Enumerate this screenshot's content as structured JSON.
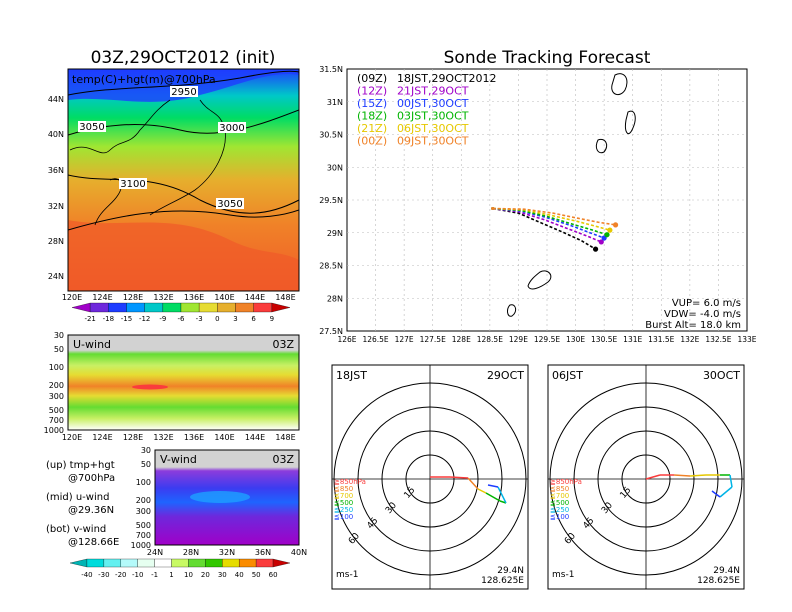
{
  "left": {
    "main_title": "03Z,29OCT2012 (init)",
    "map_label": "temp(C)+hgt(m)@700hPa",
    "contours": [
      "2950",
      "3050",
      "3000",
      "3100",
      "3050"
    ],
    "lat_ticks": [
      "44N",
      "40N",
      "36N",
      "32N",
      "28N",
      "24N"
    ],
    "lon_ticks": [
      "120E",
      "124E",
      "128E",
      "132E",
      "136E",
      "140E",
      "144E",
      "148E"
    ],
    "temp_levels": [
      "-21",
      "-18",
      "-15",
      "-12",
      "-9",
      "-6",
      "-3",
      "0",
      "3",
      "6",
      "9"
    ],
    "temp_colors": [
      "#a000c8",
      "#6e28dc",
      "#1e3cff",
      "#0096ff",
      "#00c8c8",
      "#00dc64",
      "#a0e632",
      "#e6dc32",
      "#e6af2d",
      "#f08228",
      "#fa3c3c",
      "#c80000"
    ],
    "u_panel": {
      "label": "U-wind",
      "time": "03Z",
      "p_ticks": [
        "30",
        "50",
        "100",
        "200",
        "300",
        "500",
        "700",
        "1000"
      ],
      "lon_ticks": [
        "120E",
        "124E",
        "128E",
        "132E",
        "136E",
        "140E",
        "144E",
        "148E"
      ]
    },
    "v_panel": {
      "label": "V-wind",
      "time": "03Z",
      "p_ticks": [
        "30",
        "50",
        "100",
        "200",
        "300",
        "500",
        "700",
        "1000"
      ],
      "lat_ticks": [
        "24N",
        "28N",
        "32N",
        "36N",
        "40N"
      ]
    },
    "notes": [
      {
        "a": "(up) tmp+hgt",
        "b": "@700hPa"
      },
      {
        "a": "(mid) u-wind",
        "b": "@29.36N"
      },
      {
        "a": "(bot) v-wind",
        "b": "@128.66E"
      }
    ],
    "wind_levels": [
      "-40",
      "-30",
      "-20",
      "-10",
      "-1",
      "1",
      "10",
      "20",
      "30",
      "40",
      "50",
      "60"
    ],
    "wind_colors": [
      "#00b4b4",
      "#00dcdc",
      "#64f0f0",
      "#b4fafa",
      "#e6fff0",
      "#ffffff",
      "#c8fa64",
      "#64dc32",
      "#32c800",
      "#e6dc00",
      "#fa8c00",
      "#fa3c3c",
      "#c80000"
    ]
  },
  "right": {
    "title": "Sonde Tracking Forecast",
    "legend": [
      {
        "code": "(09Z)",
        "text": "18JST,29OCT2012",
        "color": "#000000"
      },
      {
        "code": "(12Z)",
        "text": "21JST,29OCT",
        "color": "#a000c8"
      },
      {
        "code": "(15Z)",
        "text": "00JST,30OCT",
        "color": "#1e3cff"
      },
      {
        "code": "(18Z)",
        "text": "03JST,30OCT",
        "color": "#00b400"
      },
      {
        "code": "(21Z)",
        "text": "06JST,30OCT",
        "color": "#e6c800"
      },
      {
        "code": "(00Z)",
        "text": "09JST,30OCT",
        "color": "#f08228"
      }
    ],
    "params": [
      "VUP=  6.0  m/s",
      "VDW= -4.0  m/s",
      "Burst Alt=  18.0  km"
    ],
    "lat_ticks": [
      "31.5N",
      "31N",
      "30.5N",
      "30N",
      "29.5N",
      "29N",
      "28.5N",
      "28N",
      "27.5N"
    ],
    "lon_ticks": [
      "126E",
      "126.5E",
      "127E",
      "127.5E",
      "128E",
      "128.5E",
      "129E",
      "129.5E",
      "130E",
      "130.5E",
      "131E",
      "131.5E",
      "132E",
      "132.5E",
      "133E"
    ]
  },
  "hodographs": [
    {
      "jst": "18JST",
      "date": "29OCT",
      "unit": "ms-1",
      "lat": "29.4N",
      "lon": "128.625E"
    },
    {
      "jst": "06JST",
      "date": "30OCT",
      "unit": "ms-1",
      "lat": "29.4N",
      "lon": "128.625E"
    }
  ],
  "hodo_rings": [
    "15",
    "30",
    "45",
    "60"
  ],
  "hodo_levels": [
    {
      "label": "≧850hPa",
      "color": "#fa3c3c"
    },
    {
      "label": "≦850",
      "color": "#f08228"
    },
    {
      "label": "≦700",
      "color": "#e6c800"
    },
    {
      "label": "≦500",
      "color": "#00b400"
    },
    {
      "label": "≦250",
      "color": "#00b4e6"
    },
    {
      "label": "≦100",
      "color": "#1e3cff"
    }
  ],
  "chart_data": {
    "type": "line",
    "title": "Sonde Tracking Forecast",
    "xlim": [
      126,
      133
    ],
    "ylim": [
      27.5,
      31.5
    ],
    "series": [
      {
        "name": "18JST,29OCT2012",
        "x": [
          128.55,
          129.0,
          129.4,
          129.8,
          130.1,
          130.35
        ],
        "y": [
          29.37,
          29.3,
          29.15,
          29.0,
          28.88,
          28.75
        ]
      },
      {
        "name": "21JST,29OCT",
        "x": [
          128.55,
          129.0,
          129.45,
          129.9,
          130.2,
          130.45
        ],
        "y": [
          29.37,
          29.32,
          29.2,
          29.05,
          28.95,
          28.86
        ]
      },
      {
        "name": "00JST,30OCT",
        "x": [
          128.55,
          129.05,
          129.5,
          129.95,
          130.25,
          130.5
        ],
        "y": [
          29.37,
          29.33,
          29.23,
          29.1,
          29.0,
          28.92
        ]
      },
      {
        "name": "03JST,30OCT",
        "x": [
          128.55,
          129.05,
          129.5,
          129.95,
          130.3,
          130.55
        ],
        "y": [
          29.37,
          29.34,
          29.25,
          29.13,
          29.04,
          28.97
        ]
      },
      {
        "name": "06JST,30OCT",
        "x": [
          128.55,
          129.1,
          129.55,
          130.0,
          130.35,
          130.6
        ],
        "y": [
          29.37,
          29.35,
          29.27,
          29.18,
          29.1,
          29.04
        ]
      },
      {
        "name": "09JST,30OCT",
        "x": [
          128.55,
          129.1,
          129.6,
          130.05,
          130.4,
          130.7
        ],
        "y": [
          29.37,
          29.36,
          29.3,
          29.22,
          29.16,
          29.12
        ]
      }
    ]
  }
}
